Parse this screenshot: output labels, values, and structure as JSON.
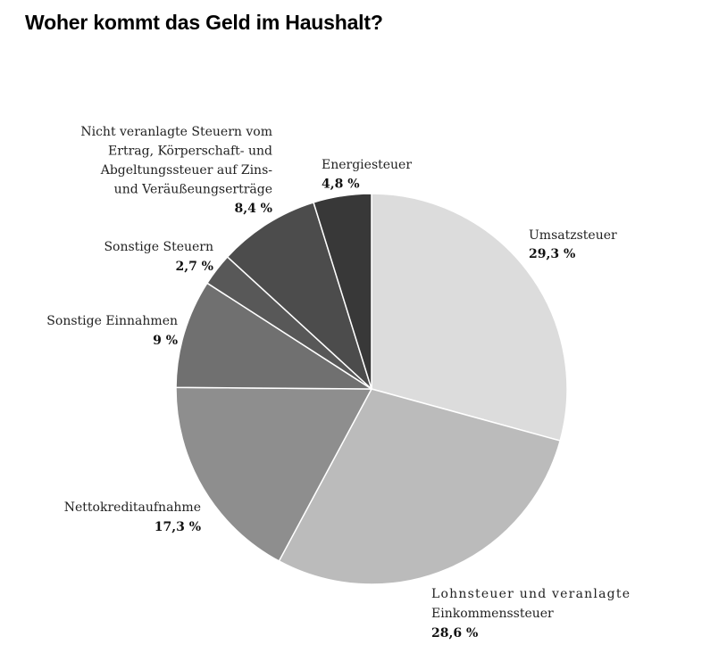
{
  "chart_data": {
    "type": "pie",
    "title": "Woher kommt das Geld im Haushalt?",
    "start_angle_deg": 0,
    "direction": "clockwise",
    "slices": [
      {
        "label": [
          "Umsatzsteuer"
        ],
        "value": 29.3,
        "value_label": "29,3 %",
        "color": "#dcdcdc"
      },
      {
        "label": [
          "Lohnsteuer und veranlagte",
          "Einkommenssteuer"
        ],
        "value": 28.6,
        "value_label": "28,6 %",
        "color": "#bbbbbb"
      },
      {
        "label": [
          "Nettokreditaufnahme"
        ],
        "value": 17.3,
        "value_label": "17,3 %",
        "color": "#8e8e8e"
      },
      {
        "label": [
          "Sonstige Einnahmen"
        ],
        "value": 9,
        "value_label": "9 %",
        "color": "#707070"
      },
      {
        "label": [
          "Sonstige Steuern"
        ],
        "value": 2.7,
        "value_label": "2,7 %",
        "color": "#585858"
      },
      {
        "label": [
          "Nicht veranlagte Steuern vom",
          "Ertrag, Körperschaft- und",
          "Abgeltungssteuer auf Zins-",
          "und Veräußeungserträge"
        ],
        "value": 8.4,
        "value_label": "8,4 %",
        "color": "#4c4c4c"
      },
      {
        "label": [
          "Energiesteuer"
        ],
        "value": 4.8,
        "value_label": "4,8 %",
        "color": "#383838"
      }
    ]
  }
}
